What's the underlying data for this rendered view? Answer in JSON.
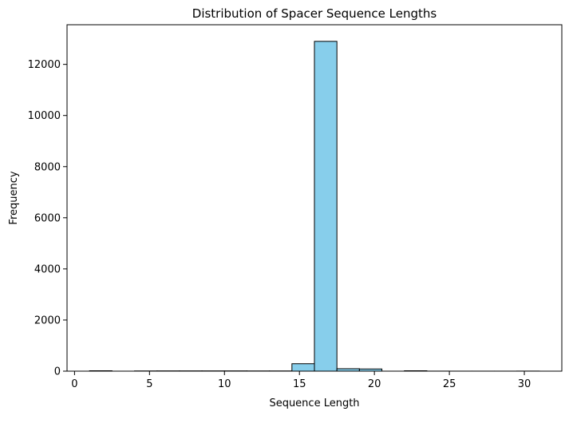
{
  "chart_data": {
    "type": "bar",
    "title": "Distribution of Spacer Sequence Lengths",
    "xlabel": "Sequence Length",
    "ylabel": "Frequency",
    "xlim": [
      -0.5,
      32.5
    ],
    "ylim": [
      0,
      13550
    ],
    "xticks": [
      0,
      5,
      10,
      15,
      20,
      25,
      30
    ],
    "yticks": [
      0,
      2000,
      4000,
      6000,
      8000,
      10000,
      12000
    ],
    "bin_edges": [
      1,
      2.5,
      4,
      5.5,
      7,
      8.5,
      10,
      11.5,
      13,
      14.5,
      16,
      17.5,
      19,
      20.5,
      22,
      23.5,
      25,
      26.5,
      28,
      29.5,
      31
    ],
    "values": [
      15,
      0,
      8,
      10,
      10,
      10,
      10,
      8,
      8,
      290,
      12900,
      95,
      85,
      0,
      15,
      2,
      1,
      1,
      1,
      3
    ],
    "bar_color": "#87ceeb",
    "edge_color": "#000000",
    "grid": false
  }
}
